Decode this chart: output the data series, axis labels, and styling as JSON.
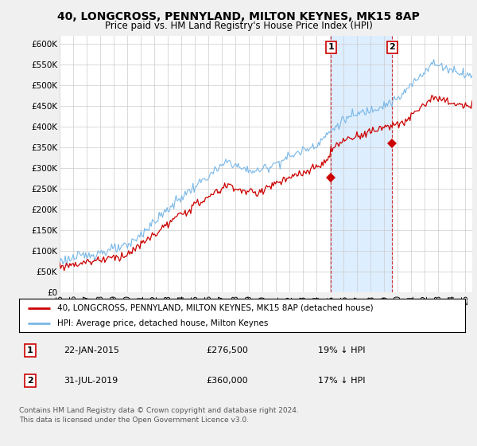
{
  "title": "40, LONGCROSS, PENNYLAND, MILTON KEYNES, MK15 8AP",
  "subtitle": "Price paid vs. HM Land Registry's House Price Index (HPI)",
  "ylabel_ticks": [
    "£0",
    "£50K",
    "£100K",
    "£150K",
    "£200K",
    "£250K",
    "£300K",
    "£350K",
    "£400K",
    "£450K",
    "£500K",
    "£550K",
    "£600K"
  ],
  "ytick_vals": [
    0,
    50000,
    100000,
    150000,
    200000,
    250000,
    300000,
    350000,
    400000,
    450000,
    500000,
    550000,
    600000
  ],
  "ylim": [
    0,
    620000
  ],
  "xmin": 1995.0,
  "xmax": 2025.5,
  "hpi_color": "#7ab8e8",
  "price_color": "#cc0000",
  "shade_color": "#ddeeff",
  "marker1_x": 2015.055,
  "marker1_y": 276500,
  "marker2_x": 2019.58,
  "marker2_y": 360000,
  "legend_label1": "40, LONGCROSS, PENNYLAND, MILTON KEYNES, MK15 8AP (detached house)",
  "legend_label2": "HPI: Average price, detached house, Milton Keynes",
  "note1_date": "22-JAN-2015",
  "note1_price": "£276,500",
  "note1_pct": "19% ↓ HPI",
  "note2_date": "31-JUL-2019",
  "note2_price": "£360,000",
  "note2_pct": "17% ↓ HPI",
  "footer": "Contains HM Land Registry data © Crown copyright and database right 2024.\nThis data is licensed under the Open Government Licence v3.0.",
  "bg_color": "#f0f0f0",
  "plot_bg_color": "#ffffff"
}
